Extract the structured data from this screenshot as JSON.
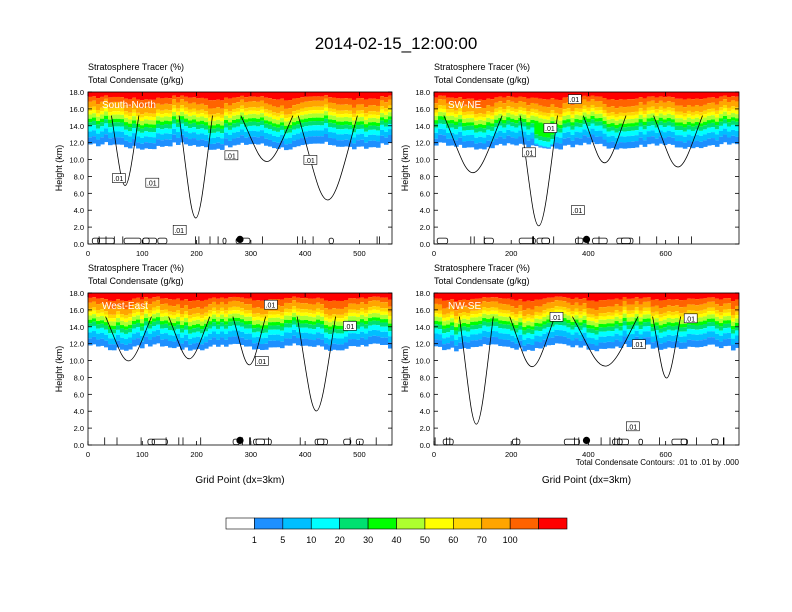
{
  "title": "2014-02-15_12:00:00",
  "footnote": "Total Condensate Contours: .01 to .01 by .000",
  "colors": {
    "levels": [
      "#ffffff",
      "#1e90ff",
      "#00bfff",
      "#00ffff",
      "#00e070",
      "#00ff00",
      "#adff2f",
      "#ffff00",
      "#ffd700",
      "#ffa500",
      "#ff6300",
      "#ff0000"
    ],
    "contour": "#000000",
    "marker": "#000000"
  },
  "colorbar": {
    "labels": [
      "1",
      "5",
      "10",
      "20",
      "30",
      "40",
      "50",
      "60",
      "70",
      "100"
    ]
  },
  "chart_data": [
    {
      "type": "heatmap",
      "subtitle1": "Stratosphere Tracer   (%)",
      "subtitle2": "Total Condensate   (g/kg)",
      "panel_label": "South-North",
      "ylabel": "Height (km)",
      "xlabel": "",
      "xlim": [
        0,
        560
      ],
      "ylim": [
        0,
        18
      ],
      "xticks": [
        "0",
        "100",
        "200",
        "300",
        "400",
        "500"
      ],
      "yticks": [
        "0.0",
        "2.0",
        "4.0",
        "6.0",
        "8.0",
        "10.0",
        "12.0",
        "14.0",
        "16.0",
        "18.0"
      ],
      "contour_labels": [
        ".01",
        ".01",
        ".01",
        ".01",
        ".01"
      ],
      "marker_x": 280
    },
    {
      "type": "heatmap",
      "subtitle1": "Stratosphere Tracer   (%)",
      "subtitle2": "Total Condensate   (g/kg)",
      "panel_label": "SW-NE",
      "ylabel": "Height (km)",
      "xlabel": "",
      "xlim": [
        0,
        790
      ],
      "ylim": [
        0,
        18
      ],
      "xticks": [
        "0",
        "200",
        "400",
        "600"
      ],
      "yticks": [
        "0.0",
        "2.0",
        "4.0",
        "6.0",
        "8.0",
        "10.0",
        "12.0",
        "14.0",
        "16.0",
        "18.0"
      ],
      "contour_labels": [
        ".01",
        ".01",
        ".01",
        ".01"
      ],
      "marker_x": 395
    },
    {
      "type": "heatmap",
      "subtitle1": "Stratosphere Tracer   (%)",
      "subtitle2": "Total Condensate   (g/kg)",
      "panel_label": "West-East",
      "ylabel": "Height (km)",
      "xlabel": "Grid Point (dx=3km)",
      "xlim": [
        0,
        560
      ],
      "ylim": [
        0,
        18
      ],
      "xticks": [
        "0",
        "100",
        "200",
        "300",
        "400",
        "500"
      ],
      "yticks": [
        "0.0",
        "2.0",
        "4.0",
        "6.0",
        "8.0",
        "10.0",
        "12.0",
        "14.0",
        "16.0",
        "18.0"
      ],
      "contour_labels": [
        ".01",
        ".01",
        ".01"
      ],
      "marker_x": 280
    },
    {
      "type": "heatmap",
      "subtitle1": "Stratosphere Tracer   (%)",
      "subtitle2": "Total Condensate   (g/kg)",
      "panel_label": "NW-SE",
      "ylabel": "Height (km)",
      "xlabel": "Grid Point (dx=3km)",
      "xlim": [
        0,
        790
      ],
      "ylim": [
        0,
        18
      ],
      "xticks": [
        "0",
        "200",
        "400",
        "600"
      ],
      "yticks": [
        "0.0",
        "2.0",
        "4.0",
        "6.0",
        "8.0",
        "10.0",
        "12.0",
        "14.0",
        "16.0",
        "18.0"
      ],
      "contour_labels": [
        ".01",
        ".01",
        ".01",
        ".01"
      ],
      "marker_x": 395
    }
  ]
}
